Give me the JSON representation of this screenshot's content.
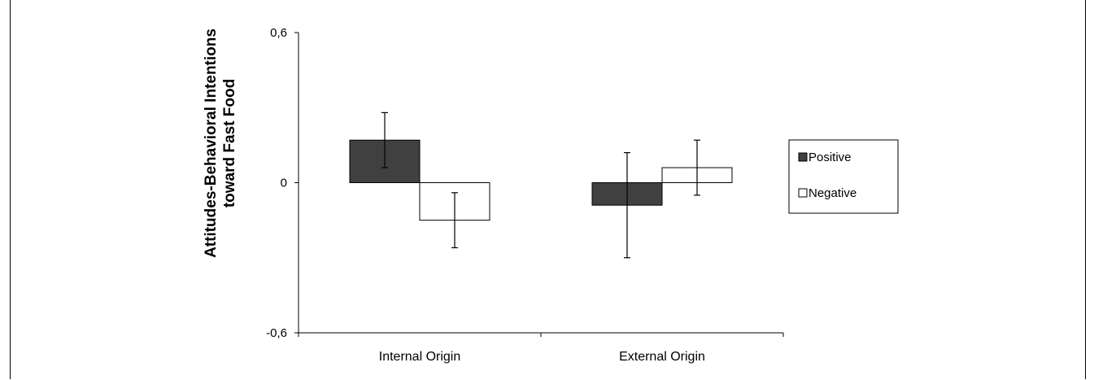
{
  "chart_data": {
    "type": "bar",
    "title": "",
    "ylabel_lines": [
      "Attitudes-Behavioral Intentions",
      "toward Fast Food"
    ],
    "xlabel": "",
    "categories": [
      "Internal Origin",
      "External Origin"
    ],
    "ylim": [
      -0.6,
      0.6
    ],
    "yticks": [
      -0.6,
      0,
      0.6
    ],
    "ytick_labels": [
      "-0,6",
      "0",
      "0,6"
    ],
    "series": [
      {
        "name": "Positive",
        "color": "#404040",
        "values": [
          0.17,
          -0.09
        ],
        "errors": [
          0.11,
          0.21
        ]
      },
      {
        "name": "Negative",
        "color": "#ffffff",
        "values": [
          -0.15,
          0.06
        ],
        "errors": [
          0.11,
          0.11
        ]
      }
    ],
    "legend_position": "right",
    "grid": false
  }
}
